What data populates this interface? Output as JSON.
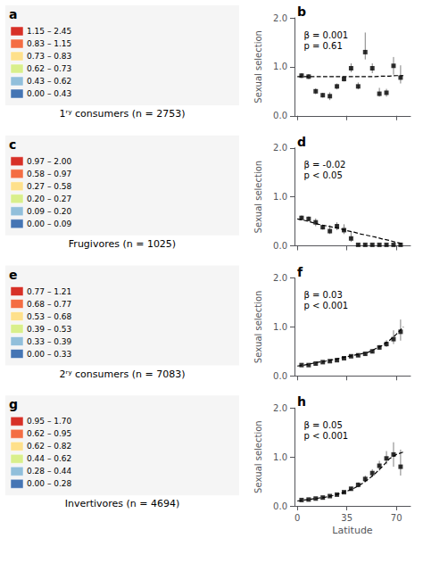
{
  "chart_data": [
    {
      "type": "scatter",
      "panel_labels": [
        "a",
        "b"
      ],
      "title": "1ʳʸ consumers (n = 2753)",
      "annotations": [
        "β = 0.001",
        "p = 0.61"
      ],
      "map_background": "#f5f5f5",
      "map_legend_colors": [
        "#d73027",
        "#f46d43",
        "#fee08b",
        "#d9ef8b",
        "#91bfdb",
        "#4575b4"
      ],
      "map_legend_labels": [
        "1.15 – 2.45",
        "0.83 – 1.15",
        "0.73 – 0.83",
        "0.62 – 0.73",
        "0.43 – 0.62",
        "0.00 – 0.43"
      ],
      "x": [
        3,
        8,
        13,
        18,
        23,
        28,
        33,
        38,
        43,
        48,
        53,
        58,
        63,
        68,
        73
      ],
      "values": [
        0.82,
        0.8,
        0.5,
        0.42,
        0.4,
        0.6,
        0.75,
        0.97,
        0.6,
        1.3,
        0.97,
        0.45,
        0.47,
        1.02,
        0.78
      ],
      "error_low": [
        0.05,
        0.05,
        0.06,
        0.05,
        0.08,
        0.06,
        0.05,
        0.08,
        0.06,
        0.15,
        0.1,
        0.06,
        0.08,
        0.18,
        0.12
      ],
      "error_high": [
        0.05,
        0.05,
        0.06,
        0.05,
        0.08,
        0.06,
        0.05,
        0.1,
        0.08,
        0.4,
        0.1,
        0.12,
        0.08,
        0.18,
        0.25
      ],
      "color": "#000000",
      "error_color": "#808080",
      "marker": "square",
      "trend": {
        "x": [
          0,
          5,
          10,
          15,
          20,
          25,
          30,
          35,
          40,
          45,
          50,
          55,
          60,
          65,
          70,
          75
        ],
        "values": [
          0.8,
          0.8,
          0.8,
          0.8,
          0.8,
          0.8,
          0.8,
          0.8,
          0.8,
          0.8,
          0.8,
          0.8,
          0.81,
          0.81,
          0.82,
          0.82
        ],
        "type": "line",
        "line_style": "dashed",
        "color": "#000000"
      },
      "ylabel": "Sexual selection",
      "xlim": [
        -2,
        80
      ],
      "xticks": [
        0,
        35,
        70
      ],
      "ylim": [
        0.0,
        2.0
      ],
      "yticks": [
        {
          "value": 0.0,
          "label": "0.0"
        },
        {
          "value": 1.0,
          "label": "1.0"
        },
        {
          "value": 2.0,
          "label": "2.0"
        }
      ],
      "grid": false,
      "tick_labels": "y"
    },
    {
      "type": "scatter",
      "panel_labels": [
        "c",
        "d"
      ],
      "title": "Frugivores (n = 1025)",
      "annotations": [
        "β = -0.02",
        "p < 0.05"
      ],
      "map_background": "#f5f5f5",
      "map_legend_colors": [
        "#d73027",
        "#f46d43",
        "#fee08b",
        "#d9ef8b",
        "#91bfdb",
        "#4575b4"
      ],
      "map_legend_labels": [
        "0.97 – 2.00",
        "0.58 – 0.97",
        "0.27 – 0.58",
        "0.20 – 0.27",
        "0.09 – 0.20",
        "0.00 – 0.09"
      ],
      "x": [
        3,
        8,
        13,
        18,
        23,
        28,
        33,
        38,
        43,
        48,
        53,
        58,
        63,
        68,
        73
      ],
      "values": [
        0.57,
        0.55,
        0.48,
        0.38,
        0.3,
        0.4,
        0.32,
        0.15,
        0.02,
        0.02,
        0.02,
        0.02,
        0.02,
        0.02,
        0.02
      ],
      "error_low": [
        0.05,
        0.05,
        0.08,
        0.05,
        0.06,
        0.08,
        0.08,
        0.07,
        0.02,
        0.02,
        0.02,
        0.02,
        0.02,
        0.02,
        0.02
      ],
      "error_high": [
        0.05,
        0.05,
        0.08,
        0.05,
        0.12,
        0.08,
        0.12,
        0.15,
        0.02,
        0.02,
        0.02,
        0.02,
        0.02,
        0.02,
        0.02
      ],
      "color": "#000000",
      "error_color": "#808080",
      "marker": "square",
      "trend": {
        "x": [
          0,
          5,
          10,
          15,
          20,
          25,
          30,
          35,
          40,
          45,
          50,
          55,
          60,
          65,
          70,
          75
        ],
        "values": [
          0.55,
          0.52,
          0.48,
          0.44,
          0.41,
          0.38,
          0.35,
          0.31,
          0.28,
          0.24,
          0.21,
          0.18,
          0.14,
          0.11,
          0.07,
          0.04
        ],
        "type": "line",
        "line_style": "dashed",
        "color": "#000000"
      },
      "ylabel": "Sexual selection",
      "xlim": [
        -2,
        80
      ],
      "xticks": [
        0,
        35,
        70
      ],
      "ylim": [
        0.0,
        2.0
      ],
      "yticks": [
        {
          "value": 0.0,
          "label": "0.0"
        },
        {
          "value": 1.0,
          "label": "1.0"
        },
        {
          "value": 2.0,
          "label": "2.0"
        }
      ],
      "grid": false,
      "tick_labels": "y"
    },
    {
      "type": "scatter",
      "panel_labels": [
        "e",
        "f"
      ],
      "title": "2ʳʸ consumers (n = 7083)",
      "annotations": [
        "β = 0.03",
        "p < 0.001"
      ],
      "map_background": "#f5f5f5",
      "map_legend_colors": [
        "#d73027",
        "#f46d43",
        "#fee08b",
        "#d9ef8b",
        "#91bfdb",
        "#4575b4"
      ],
      "map_legend_labels": [
        "0.77 – 1.21",
        "0.68 – 0.77",
        "0.53 – 0.68",
        "0.39 – 0.53",
        "0.33 – 0.39",
        "0.00 – 0.33"
      ],
      "x": [
        3,
        8,
        13,
        18,
        23,
        28,
        33,
        38,
        43,
        48,
        53,
        58,
        63,
        68,
        73
      ],
      "values": [
        0.22,
        0.22,
        0.25,
        0.28,
        0.3,
        0.32,
        0.36,
        0.4,
        0.42,
        0.45,
        0.5,
        0.58,
        0.65,
        0.75,
        0.9
      ],
      "error_low": [
        0.02,
        0.02,
        0.02,
        0.02,
        0.02,
        0.02,
        0.02,
        0.02,
        0.03,
        0.03,
        0.04,
        0.05,
        0.06,
        0.1,
        0.18
      ],
      "error_high": [
        0.02,
        0.02,
        0.02,
        0.02,
        0.02,
        0.02,
        0.02,
        0.02,
        0.03,
        0.03,
        0.04,
        0.05,
        0.08,
        0.18,
        0.25
      ],
      "color": "#000000",
      "error_color": "#808080",
      "marker": "square",
      "trend": {
        "x": [
          0,
          5,
          10,
          15,
          20,
          25,
          30,
          35,
          40,
          45,
          50,
          55,
          60,
          65,
          70,
          75
        ],
        "values": [
          0.2,
          0.22,
          0.25,
          0.28,
          0.3,
          0.33,
          0.36,
          0.39,
          0.42,
          0.45,
          0.48,
          0.55,
          0.62,
          0.72,
          0.85,
          1.0
        ],
        "type": "line",
        "line_style": "dashed",
        "color": "#000000"
      },
      "ylabel": "Sexual selection",
      "xlim": [
        -2,
        80
      ],
      "xticks": [
        0,
        35,
        70
      ],
      "ylim": [
        0.0,
        2.0
      ],
      "yticks": [
        {
          "value": 0.0,
          "label": "0.0"
        },
        {
          "value": 1.0,
          "label": "1.0"
        },
        {
          "value": 2.0,
          "label": "2.0"
        }
      ],
      "grid": false,
      "tick_labels": "y"
    },
    {
      "type": "scatter",
      "panel_labels": [
        "g",
        "h"
      ],
      "title": "Invertivores (n = 4694)",
      "annotations": [
        "β = 0.05",
        "p < 0.001"
      ],
      "map_background": "#f5f5f5",
      "map_legend_colors": [
        "#d73027",
        "#f46d43",
        "#fee08b",
        "#d9ef8b",
        "#91bfdb",
        "#4575b4"
      ],
      "map_legend_labels": [
        "0.95 – 1.70",
        "0.62 – 0.95",
        "0.62 – 0.82",
        "0.44 – 0.62",
        "0.28 – 0.44",
        "0.00 – 0.28"
      ],
      "x": [
        3,
        8,
        13,
        18,
        23,
        28,
        33,
        38,
        43,
        48,
        53,
        58,
        63,
        68,
        73
      ],
      "values": [
        0.12,
        0.13,
        0.15,
        0.17,
        0.2,
        0.23,
        0.28,
        0.35,
        0.43,
        0.55,
        0.67,
        0.82,
        0.97,
        1.05,
        0.8
      ],
      "error_low": [
        0.02,
        0.02,
        0.02,
        0.02,
        0.02,
        0.02,
        0.03,
        0.04,
        0.05,
        0.07,
        0.08,
        0.1,
        0.12,
        0.25,
        0.18
      ],
      "error_high": [
        0.02,
        0.02,
        0.02,
        0.02,
        0.02,
        0.02,
        0.03,
        0.04,
        0.05,
        0.07,
        0.08,
        0.1,
        0.15,
        0.25,
        0.35
      ],
      "color": "#000000",
      "error_color": "#808080",
      "marker": "square",
      "trend": {
        "x": [
          0,
          5,
          10,
          15,
          20,
          25,
          30,
          35,
          40,
          45,
          50,
          55,
          60,
          65,
          70,
          75
        ],
        "values": [
          0.1,
          0.12,
          0.14,
          0.16,
          0.18,
          0.21,
          0.25,
          0.3,
          0.36,
          0.44,
          0.54,
          0.66,
          0.8,
          0.96,
          1.05,
          1.1
        ],
        "type": "line",
        "line_style": "dashed",
        "color": "#000000"
      },
      "ylabel": "Sexual selection",
      "xlabel": "Latitude",
      "xlim": [
        -2,
        80
      ],
      "xticks": [
        0,
        35,
        70
      ],
      "ylim": [
        0.0,
        2.0
      ],
      "yticks": [
        {
          "value": 0.0,
          "label": "0.0"
        },
        {
          "value": 1.0,
          "label": "1.0"
        },
        {
          "value": 2.0,
          "label": "2.0"
        }
      ],
      "grid": false
    }
  ]
}
